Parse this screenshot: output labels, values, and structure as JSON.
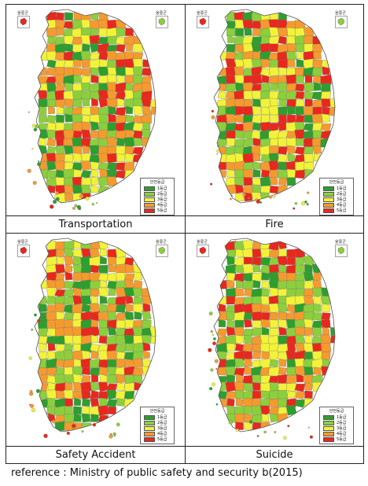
{
  "panels": [
    {
      "title": "Transportation"
    },
    {
      "title": "Fire"
    },
    {
      "title": "Safety Accident"
    },
    {
      "title": "Suicide"
    }
  ],
  "legend": {
    "title": "안전등급",
    "grades": [
      {
        "label": "1등급",
        "color": "#2e9e2e"
      },
      {
        "label": "2등급",
        "color": "#8ccf3c"
      },
      {
        "label": "3등급",
        "color": "#f2f23a"
      },
      {
        "label": "4등급",
        "color": "#f59a2e"
      },
      {
        "label": "5등급",
        "color": "#e8281e"
      }
    ]
  },
  "insets": {
    "left_label": "울릉군",
    "right_label": "울릉군"
  },
  "reference": "reference : Ministry of public safety and security b(2015)"
}
